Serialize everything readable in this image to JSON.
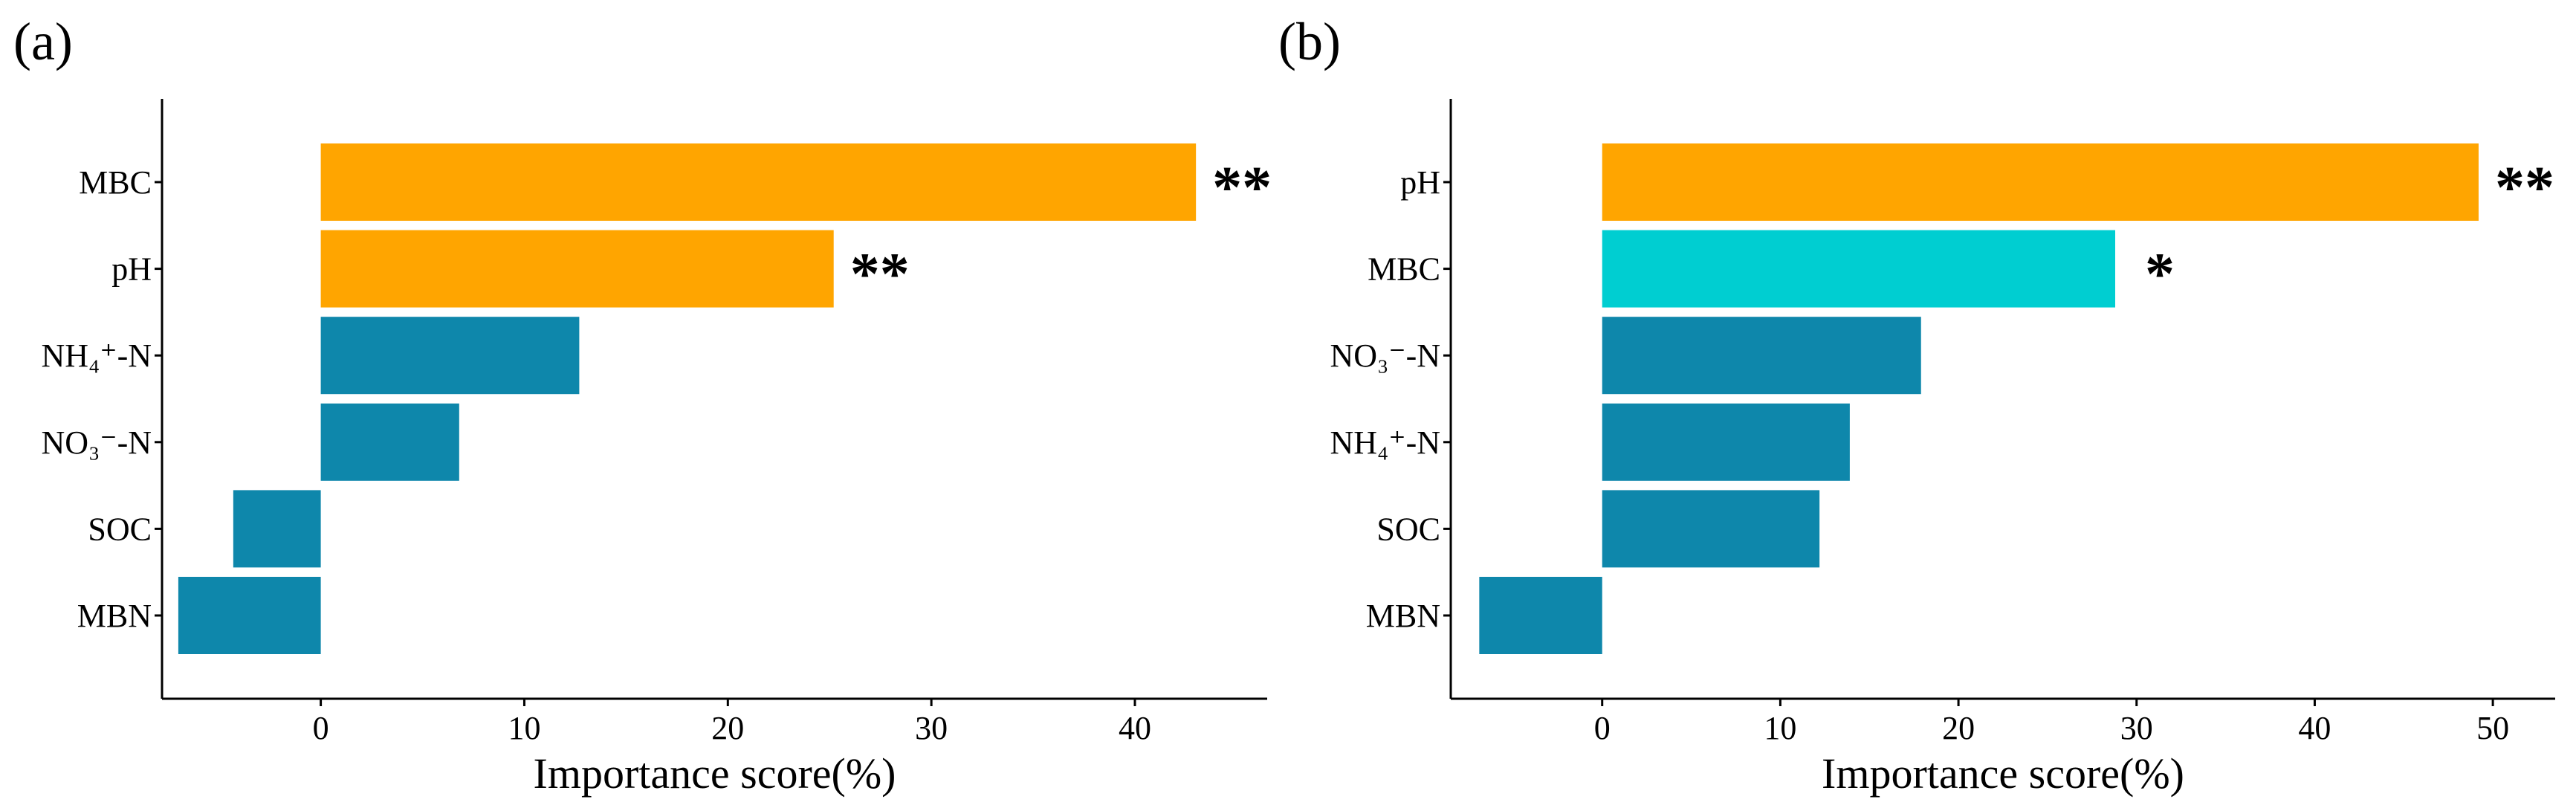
{
  "chart_data": [
    {
      "type": "bar",
      "orientation": "horizontal",
      "panel_label": "(a)",
      "xlabel": "Importance score(%)",
      "ylabel": "",
      "xlim": [
        -7.8,
        46.5
      ],
      "xticks": [
        0,
        10,
        20,
        30,
        40
      ],
      "xtick_labels": [
        "0",
        "10",
        "20",
        "30",
        "40"
      ],
      "grid": false,
      "legend": "none",
      "categories": [
        "MBC",
        "pH",
        "NH₄⁺-N",
        "NO₃⁻-N",
        "SOC",
        "MBN"
      ],
      "values": [
        43.0,
        25.2,
        12.7,
        6.8,
        -4.3,
        -7.0
      ],
      "colors": [
        "#FFA500",
        "#FFA500",
        "#0E87AB",
        "#0E87AB",
        "#0E87AB",
        "#0E87AB"
      ],
      "significance": [
        "**",
        "**",
        "",
        "",
        "",
        ""
      ]
    },
    {
      "type": "bar",
      "orientation": "horizontal",
      "panel_label": "(b)",
      "xlabel": "Importance score(%)",
      "ylabel": "",
      "xlim": [
        -8.5,
        53.5
      ],
      "xticks": [
        0,
        10,
        20,
        30,
        40,
        50
      ],
      "xtick_labels": [
        "0",
        "10",
        "20",
        "30",
        "40",
        "50"
      ],
      "grid": false,
      "legend": "none",
      "categories": [
        "pH",
        "MBC",
        "NO₃⁻-N",
        "NH₄⁺-N",
        "SOC",
        "MBN"
      ],
      "values": [
        49.2,
        28.8,
        17.9,
        13.9,
        12.2,
        -6.9
      ],
      "colors": [
        "#FFA500",
        "#00CED1",
        "#0E87AB",
        "#0E87AB",
        "#0E87AB",
        "#0E87AB"
      ],
      "significance": [
        "**",
        "*",
        "",
        "",
        "",
        ""
      ]
    }
  ]
}
